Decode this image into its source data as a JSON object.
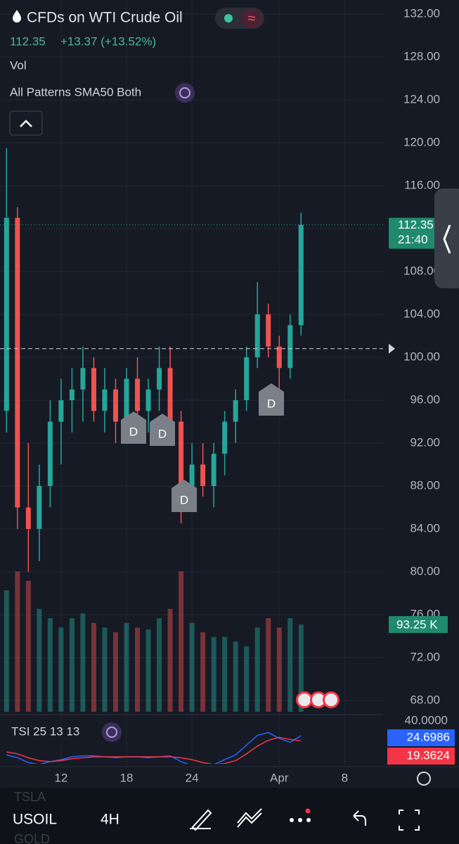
{
  "chart_data": {
    "type": "candlestick",
    "title": "CFDs on WTI Crude Oil",
    "price": "112.35",
    "change": "+13.37 (+13.52%)",
    "volume_label": "Vol",
    "indicator": "All Patterns SMA50 Both",
    "x": [
      7,
      8,
      9,
      10,
      11,
      12,
      13,
      14,
      15,
      16,
      17,
      18,
      19,
      20,
      21,
      22,
      23,
      24,
      25,
      26,
      27,
      28,
      29,
      30,
      31,
      32,
      33,
      34
    ],
    "xlim": [
      6.4,
      41.2
    ],
    "xticks": [
      12,
      18,
      24,
      {
        "value": 32,
        "label": "Apr"
      },
      {
        "value": 38,
        "label": "8"
      }
    ],
    "ylim": [
      68,
      132
    ],
    "yticks": [
      {
        "value": 132,
        "label": "132.00"
      },
      {
        "value": 128,
        "label": "128.00"
      },
      {
        "value": 124,
        "label": "124.00"
      },
      {
        "value": 120,
        "label": "120.00"
      },
      {
        "value": 116,
        "label": "116.00"
      },
      {
        "value": 112,
        "label": "112.00"
      },
      {
        "value": 108,
        "label": "108.00"
      },
      {
        "value": 104,
        "label": "104.00"
      },
      {
        "value": 100,
        "label": "100.00"
      },
      {
        "value": 96,
        "label": "96.00"
      },
      {
        "value": 92,
        "label": "92.00"
      },
      {
        "value": 88,
        "label": "88.00"
      },
      {
        "value": 84,
        "label": "84.00"
      },
      {
        "value": 80,
        "label": "80.00"
      },
      {
        "value": 76,
        "label": "76.00"
      },
      {
        "value": 72,
        "label": "72.00"
      },
      {
        "value": 68,
        "label": "68.00"
      }
    ],
    "open": [
      95,
      113,
      86,
      84,
      88,
      94,
      96,
      97,
      99,
      95,
      97,
      94,
      98,
      95,
      97,
      99,
      94,
      87,
      90,
      88,
      91,
      94,
      96,
      100,
      104,
      101,
      99,
      103
    ],
    "high": [
      119.5,
      114,
      92,
      90,
      96,
      98,
      99,
      101,
      100,
      99,
      98,
      99,
      100,
      98,
      101,
      101,
      95,
      92,
      92,
      92,
      95,
      97,
      101,
      107,
      105,
      102,
      104,
      113.5
    ],
    "low": [
      93,
      84,
      80,
      81,
      86,
      90,
      93,
      94,
      94,
      93,
      92,
      93,
      94,
      93,
      95,
      93,
      84.5,
      86,
      87,
      86,
      89,
      92,
      95,
      99,
      100,
      97,
      98,
      102
    ],
    "close": [
      113,
      86,
      84,
      88,
      94,
      96,
      97,
      99,
      95,
      97,
      94,
      98,
      95,
      97,
      99,
      94,
      87,
      90,
      88,
      91,
      94,
      96,
      100,
      104,
      101,
      99,
      103,
      112.35
    ],
    "up_color": "#26a69a",
    "down_color": "#ef5350",
    "dashed_line": 100.8,
    "countdown": "21:40",
    "annotations": [
      "D",
      "D",
      "D",
      "D"
    ],
    "volume": {
      "values": [
        130000,
        150000,
        140000,
        110000,
        100000,
        90000,
        100000,
        105000,
        95000,
        90000,
        85000,
        95000,
        90000,
        88000,
        100000,
        110000,
        150000,
        95000,
        85000,
        80000,
        80000,
        75000,
        70000,
        90000,
        100000,
        90000,
        100000,
        93250
      ],
      "last_label": "93.25 K"
    },
    "tsi": {
      "name": "TSI 25 13 13",
      "ylim": [
        -5,
        40
      ],
      "yticks": [
        {
          "value": 40,
          "label": "40.0000"
        }
      ],
      "series": [
        {
          "color": "#2962ff",
          "values": [
            5,
            2,
            -3,
            -5,
            -2,
            0,
            3,
            4,
            4,
            3,
            2,
            3,
            3,
            2,
            3,
            4,
            -2,
            -6,
            -8,
            -5,
            0,
            5,
            15,
            25,
            28,
            22,
            18,
            24.6986
          ],
          "last_label": "24.6986"
        },
        {
          "color": "#f23645",
          "values": [
            8,
            6,
            2,
            -1,
            -2,
            -1,
            1,
            2,
            3,
            3,
            3,
            3,
            3,
            3,
            3,
            3,
            2,
            0,
            -3,
            -5,
            -4,
            -1,
            6,
            14,
            20,
            23,
            21,
            19.3624
          ],
          "last_label": "19.3624"
        }
      ]
    }
  },
  "toolbar": {
    "symbol": "USOIL",
    "interval": "4H",
    "ghost_top": "TSLA",
    "ghost_bottom": "GOLD"
  }
}
